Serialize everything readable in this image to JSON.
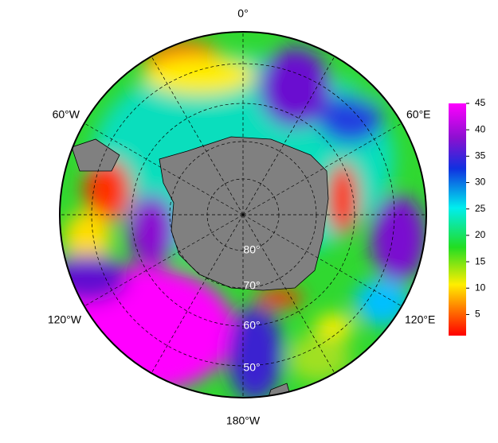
{
  "map": {
    "longitude_labels": [
      "0°",
      "60°E",
      "120°E",
      "180°W",
      "120°W",
      "60°W"
    ],
    "latitude_labels": [
      "50°",
      "60°",
      "70°",
      "80°"
    ],
    "colorbar": {
      "range": [
        1,
        45
      ],
      "ticks": [
        5,
        10,
        15,
        20,
        25,
        30,
        35,
        40,
        45
      ]
    }
  }
}
